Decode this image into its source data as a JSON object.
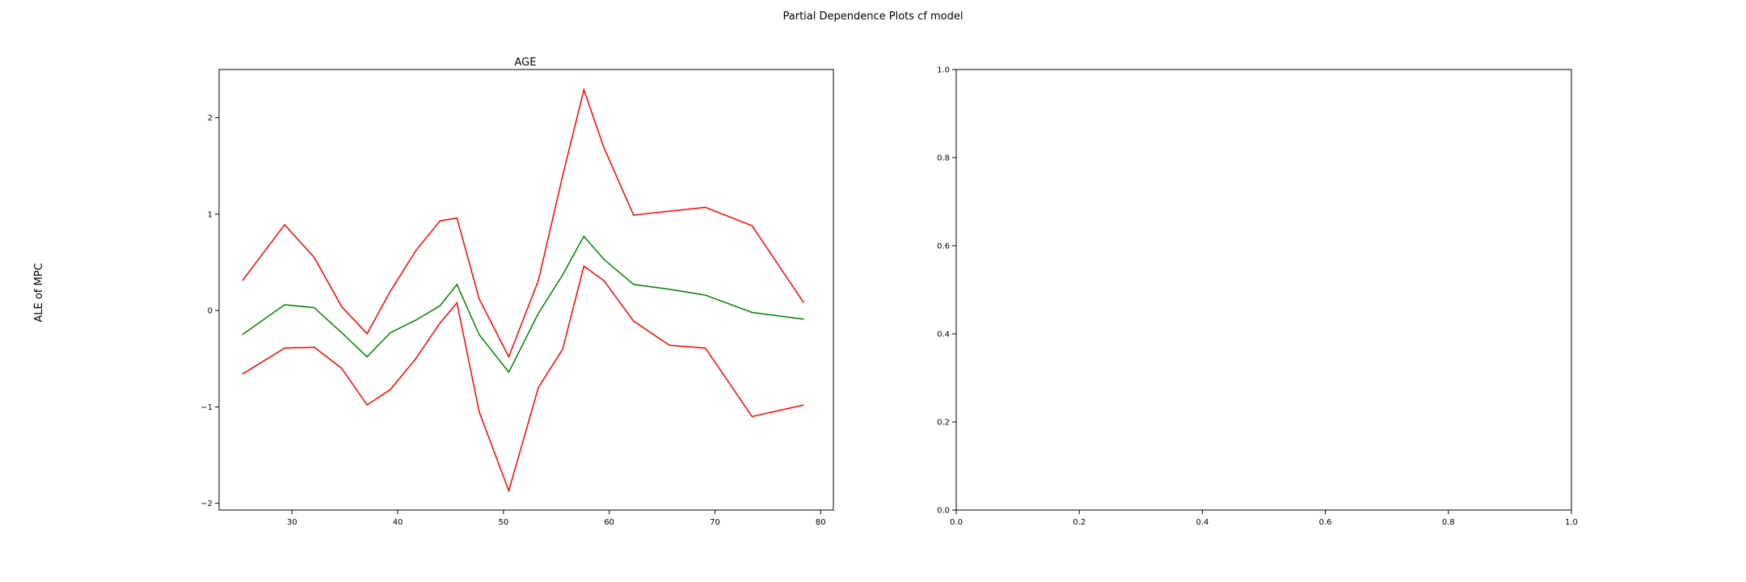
{
  "figure": {
    "suptitle": "Partial Dependence Plots cf model",
    "ylabel": "ALE of MPC"
  },
  "chart_data": [
    {
      "type": "line",
      "title": "AGE",
      "xlabel": "",
      "ylabel": "ALE of MPC",
      "xlim": [
        23.1,
        81.2
      ],
      "ylim": [
        -2.07,
        2.5
      ],
      "xticks": [
        30,
        40,
        50,
        60,
        70,
        80
      ],
      "yticks": [
        -2,
        -1,
        0,
        1,
        2
      ],
      "grid": false,
      "legend": "none",
      "series": [
        {
          "role": "upper",
          "color": "#ff0000",
          "x": [
            25.3,
            29.3,
            32.1,
            34.7,
            37.1,
            39.3,
            41.7,
            44.0,
            45.6,
            47.7,
            50.5,
            53.3,
            55.6,
            57.6,
            59.5,
            62.3,
            65.7,
            69.1,
            73.5,
            78.4
          ],
          "y": [
            0.31,
            0.89,
            0.55,
            0.04,
            -0.24,
            0.2,
            0.62,
            0.93,
            0.96,
            0.12,
            -0.48,
            0.31,
            1.4,
            2.29,
            1.69,
            0.99,
            1.03,
            1.07,
            0.88,
            0.08
          ]
        },
        {
          "role": "mean",
          "color": "#008000",
          "x": [
            25.3,
            29.3,
            32.1,
            34.7,
            37.1,
            39.3,
            41.7,
            44.0,
            45.6,
            47.7,
            50.5,
            53.3,
            55.6,
            57.6,
            59.5,
            62.3,
            65.7,
            69.1,
            73.5,
            78.4
          ],
          "y": [
            -0.25,
            0.06,
            0.03,
            -0.23,
            -0.48,
            -0.23,
            -0.1,
            0.05,
            0.27,
            -0.25,
            -0.64,
            -0.03,
            0.37,
            0.77,
            0.53,
            0.27,
            0.22,
            0.16,
            -0.02,
            -0.09
          ]
        },
        {
          "role": "lower",
          "color": "#ff0000",
          "x": [
            25.3,
            29.3,
            32.1,
            34.7,
            37.1,
            39.3,
            41.7,
            44.0,
            45.6,
            47.7,
            50.5,
            53.3,
            55.6,
            57.6,
            59.5,
            62.3,
            65.7,
            69.1,
            73.5,
            78.4
          ],
          "y": [
            -0.66,
            -0.39,
            -0.38,
            -0.6,
            -0.98,
            -0.82,
            -0.5,
            -0.13,
            0.08,
            -1.05,
            -1.87,
            -0.8,
            -0.4,
            0.46,
            0.31,
            -0.11,
            -0.36,
            -0.39,
            -1.1,
            -0.98
          ]
        }
      ]
    },
    {
      "type": "line",
      "title": "",
      "xlabel": "",
      "ylabel": "",
      "xlim": [
        0,
        1
      ],
      "ylim": [
        0,
        1
      ],
      "xticks": [
        0.0,
        0.2,
        0.4,
        0.6,
        0.8,
        1.0
      ],
      "yticks": [
        0.0,
        0.2,
        0.4,
        0.6,
        0.8,
        1.0
      ],
      "grid": false,
      "legend": "none",
      "series": []
    }
  ]
}
